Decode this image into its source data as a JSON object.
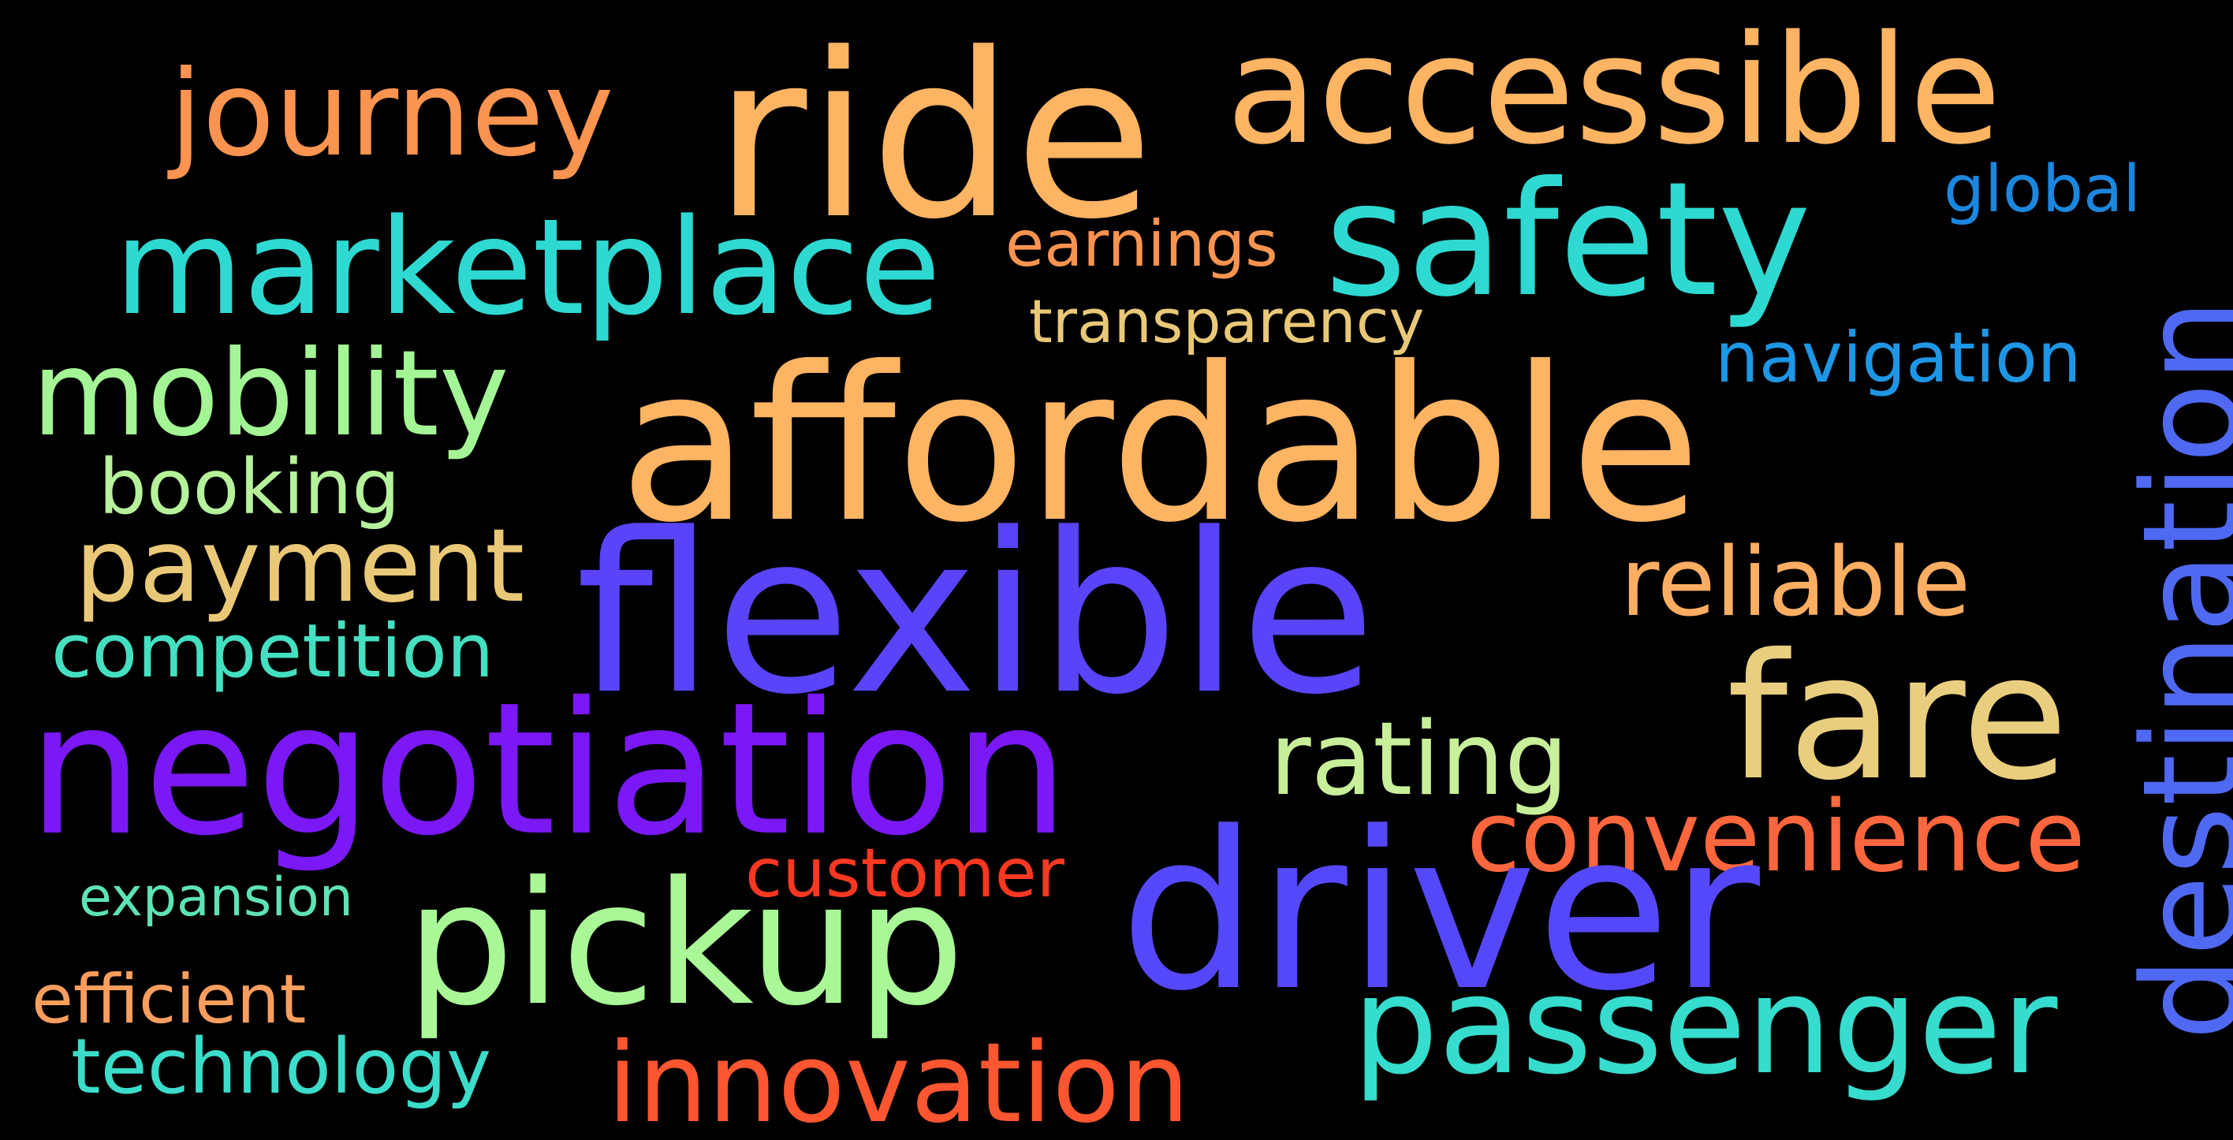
{
  "words": [
    {
      "text": "ride",
      "color": "#FDB463"
    },
    {
      "text": "accessible",
      "color": "#FDB463"
    },
    {
      "text": "journey",
      "color": "#FA9450"
    },
    {
      "text": "safety",
      "color": "#2ED9D2"
    },
    {
      "text": "global",
      "color": "#1C87DE"
    },
    {
      "text": "marketplace",
      "color": "#2ED9D2"
    },
    {
      "text": "earnings",
      "color": "#FA9450"
    },
    {
      "text": "transparency",
      "color": "#E9C877"
    },
    {
      "text": "navigation",
      "color": "#1E96E6"
    },
    {
      "text": "mobility",
      "color": "#A4F595"
    },
    {
      "text": "affordable",
      "color": "#FDB463"
    },
    {
      "text": "booking",
      "color": "#B5F29A"
    },
    {
      "text": "payment",
      "color": "#E9C877"
    },
    {
      "text": "flexible",
      "color": "#5944FA"
    },
    {
      "text": "reliable",
      "color": "#FDAE62"
    },
    {
      "text": "destination",
      "color": "#4F69F3"
    },
    {
      "text": "competition",
      "color": "#44E0C1"
    },
    {
      "text": "fare",
      "color": "#E9CE7F"
    },
    {
      "text": "negotiation",
      "color": "#7A18F6"
    },
    {
      "text": "rating",
      "color": "#C8EF99"
    },
    {
      "text": "convenience",
      "color": "#FE673D"
    },
    {
      "text": "customer",
      "color": "#FB3821"
    },
    {
      "text": "expansion",
      "color": "#5EE3B8"
    },
    {
      "text": "pickup",
      "color": "#A9F796"
    },
    {
      "text": "driver",
      "color": "#5548FB"
    },
    {
      "text": "efficient",
      "color": "#FA9E5E"
    },
    {
      "text": "passenger",
      "color": "#36DCCD"
    },
    {
      "text": "technology",
      "color": "#3CDCCB"
    },
    {
      "text": "innovation",
      "color": "#FE5631"
    }
  ]
}
